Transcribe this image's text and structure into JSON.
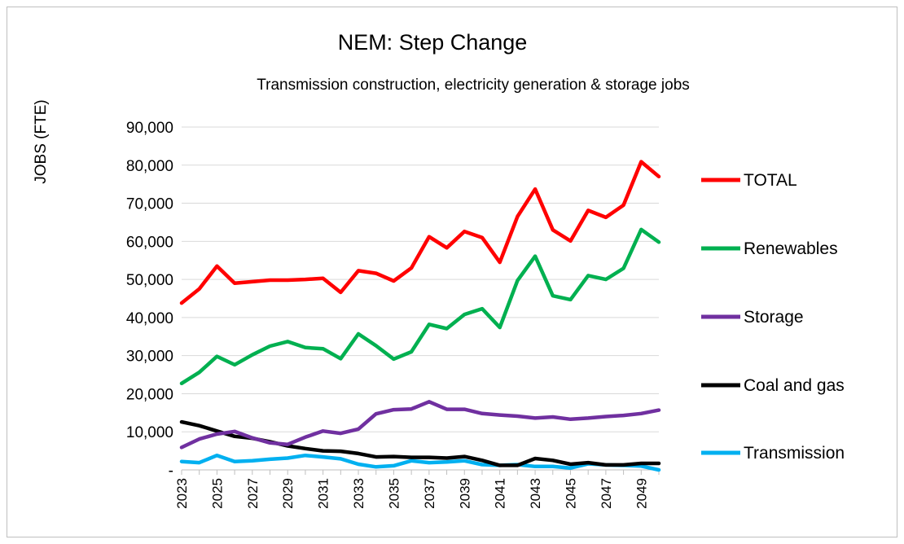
{
  "chart_data": {
    "type": "line",
    "title": "NEM: Step Change",
    "subtitle": "Transmission construction, electricity generation & storage jobs",
    "ylabel": "JOBS (FTE)",
    "xlabel": "",
    "ylim": [
      0,
      90000
    ],
    "yticks": [
      0,
      10000,
      20000,
      30000,
      40000,
      50000,
      60000,
      70000,
      80000,
      90000
    ],
    "ytick_labels": [
      "-",
      "10,000",
      "20,000",
      "30,000",
      "40,000",
      "50,000",
      "60,000",
      "70,000",
      "80,000",
      "90,000"
    ],
    "x": [
      2023,
      2024,
      2025,
      2026,
      2027,
      2028,
      2029,
      2030,
      2031,
      2032,
      2033,
      2034,
      2035,
      2036,
      2037,
      2038,
      2039,
      2040,
      2041,
      2042,
      2043,
      2044,
      2045,
      2046,
      2047,
      2048,
      2049,
      2050
    ],
    "xtick_labels": [
      "2023",
      "2025",
      "2027",
      "2029",
      "2031",
      "2033",
      "2035",
      "2037",
      "2039",
      "2041",
      "2043",
      "2045",
      "2047",
      "2049"
    ],
    "grid": true,
    "legend_position": "right",
    "series": [
      {
        "name": "TOTAL",
        "color": "#ff0000",
        "values": [
          43800,
          47500,
          53500,
          49000,
          49400,
          49800,
          49800,
          50000,
          50300,
          46600,
          52300,
          51600,
          49600,
          53000,
          61200,
          58300,
          62600,
          61000,
          54500,
          66500,
          73700,
          63000,
          60100,
          68100,
          66300,
          69500,
          80900,
          77000
        ]
      },
      {
        "name": "Renewables",
        "color": "#00b050",
        "values": [
          22700,
          25600,
          29800,
          27600,
          30200,
          32500,
          33700,
          32100,
          31800,
          29200,
          35700,
          32600,
          29100,
          31000,
          38200,
          37100,
          40800,
          42300,
          37400,
          49700,
          56100,
          45700,
          44700,
          51000,
          50000,
          52900,
          63100,
          59800
        ]
      },
      {
        "name": "Storage",
        "color": "#7030a0",
        "values": [
          5900,
          8100,
          9400,
          10100,
          8400,
          7100,
          6700,
          8600,
          10200,
          9600,
          10700,
          14700,
          15800,
          16000,
          17900,
          15900,
          15900,
          14800,
          14400,
          14100,
          13600,
          13900,
          13300,
          13600,
          14000,
          14300,
          14800,
          15700
        ]
      },
      {
        "name": "Coal and gas",
        "color": "#000000",
        "values": [
          12600,
          11600,
          10200,
          8800,
          8300,
          7400,
          6300,
          5600,
          5000,
          4900,
          4300,
          3400,
          3500,
          3300,
          3300,
          3100,
          3500,
          2500,
          1200,
          1200,
          3000,
          2500,
          1500,
          1900,
          1300,
          1300,
          1700,
          1700
        ]
      },
      {
        "name": "Transmission",
        "color": "#00b0f0",
        "values": [
          2200,
          1900,
          3800,
          2200,
          2400,
          2800,
          3100,
          3800,
          3400,
          2900,
          1500,
          800,
          1100,
          2400,
          1900,
          2100,
          2400,
          1400,
          1200,
          1400,
          900,
          900,
          500,
          1600,
          1300,
          1200,
          1000,
          0
        ]
      }
    ]
  }
}
